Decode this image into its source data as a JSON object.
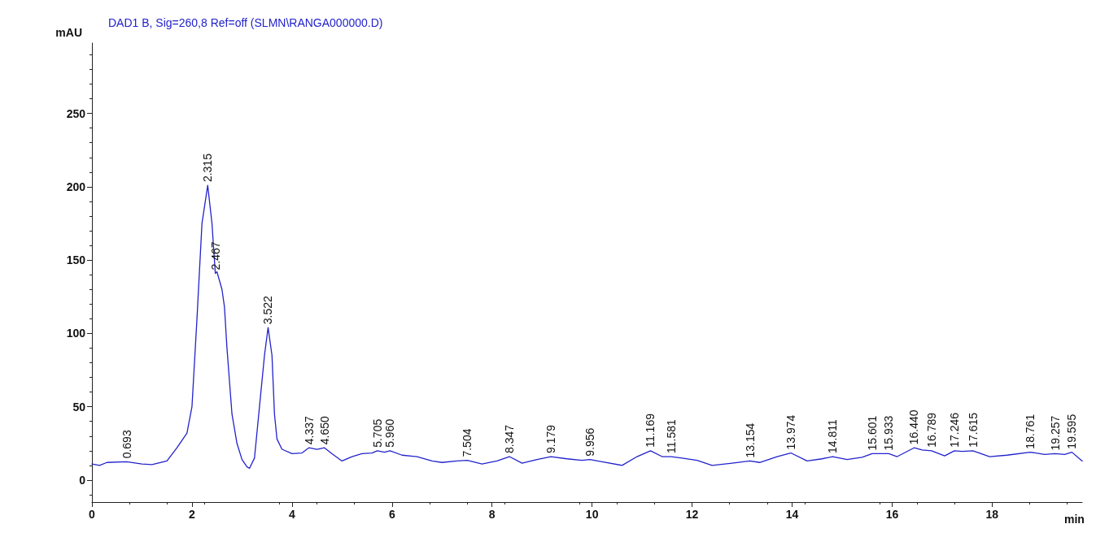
{
  "chart_data": {
    "type": "line",
    "title": "DAD1 B, Sig=260,8 Ref=off (SLMN\\RANGA000000.D)",
    "xlabel": "min",
    "ylabel": "mAU",
    "xlim": [
      0,
      19.8
    ],
    "xticks": [
      0,
      2,
      4,
      6,
      8,
      10,
      12,
      14,
      16,
      18
    ],
    "ylim": [
      -15,
      298
    ],
    "yticks": [
      0,
      50,
      100,
      150,
      200,
      250
    ],
    "grid": false,
    "marker": "none",
    "line_style": "solid",
    "series": [
      {
        "color": "#2222cc",
        "x": [
          0,
          0.15,
          0.3,
          0.693,
          1.0,
          1.2,
          1.5,
          1.7,
          1.9,
          2.0,
          2.1,
          2.2,
          2.315,
          2.4,
          2.467,
          2.5,
          2.6,
          2.65,
          2.7,
          2.8,
          2.9,
          3.0,
          3.1,
          3.15,
          3.25,
          3.35,
          3.45,
          3.522,
          3.6,
          3.65,
          3.7,
          3.8,
          4.0,
          4.2,
          4.337,
          4.5,
          4.65,
          4.8,
          5.0,
          5.2,
          5.4,
          5.6,
          5.705,
          5.85,
          5.96,
          6.2,
          6.5,
          6.8,
          7.0,
          7.3,
          7.504,
          7.8,
          8.1,
          8.347,
          8.6,
          8.9,
          9.179,
          9.5,
          9.8,
          9.956,
          10.2,
          10.6,
          10.9,
          11.169,
          11.4,
          11.581,
          11.8,
          12.1,
          12.4,
          12.8,
          13.154,
          13.35,
          13.7,
          13.974,
          14.3,
          14.6,
          14.811,
          15.1,
          15.4,
          15.601,
          15.933,
          16.1,
          16.44,
          16.6,
          16.789,
          17.05,
          17.246,
          17.4,
          17.615,
          17.95,
          18.3,
          18.761,
          19.05,
          19.257,
          19.45,
          19.595,
          19.8
        ],
        "values": [
          11,
          10,
          12,
          12.5,
          11,
          10.5,
          13,
          22,
          32,
          50,
          110,
          175,
          201,
          175,
          141,
          142,
          130,
          118,
          90,
          45,
          25,
          14,
          9,
          8,
          15,
          50,
          85,
          104,
          85,
          45,
          28,
          21,
          18,
          18.5,
          22,
          21,
          22,
          18,
          13,
          16,
          18,
          18.5,
          20,
          19,
          20,
          17,
          16,
          13,
          12,
          13,
          13.5,
          11,
          13,
          16,
          11.5,
          14,
          16,
          14.5,
          13.5,
          14,
          12.5,
          10,
          16,
          20,
          16,
          16,
          15,
          13.5,
          10,
          11.5,
          13,
          12,
          16,
          18.5,
          13,
          14.5,
          16,
          14,
          15.5,
          18,
          18,
          16,
          22,
          20.5,
          20,
          16.5,
          20,
          19.5,
          20,
          16,
          17,
          19,
          17.5,
          18,
          17.5,
          19,
          13
        ]
      }
    ],
    "annotations": [
      {
        "text": "0.693",
        "x": 0.693,
        "y": 12.5
      },
      {
        "text": "2.315",
        "x": 2.315,
        "y": 201
      },
      {
        "text": "2.467",
        "x": 2.467,
        "y": 141
      },
      {
        "text": "3.522",
        "x": 3.522,
        "y": 104
      },
      {
        "text": "4.337",
        "x": 4.337,
        "y": 22
      },
      {
        "text": "4.650",
        "x": 4.65,
        "y": 22
      },
      {
        "text": "5.705",
        "x": 5.705,
        "y": 20
      },
      {
        "text": "5.960",
        "x": 5.96,
        "y": 20
      },
      {
        "text": "7.504",
        "x": 7.504,
        "y": 13.5
      },
      {
        "text": "8.347",
        "x": 8.347,
        "y": 16
      },
      {
        "text": "9.179",
        "x": 9.179,
        "y": 16
      },
      {
        "text": "9.956",
        "x": 9.956,
        "y": 14
      },
      {
        "text": "11.169",
        "x": 11.169,
        "y": 20
      },
      {
        "text": "11.581",
        "x": 11.581,
        "y": 16
      },
      {
        "text": "13.154",
        "x": 13.154,
        "y": 13
      },
      {
        "text": "13.974",
        "x": 13.974,
        "y": 18.5
      },
      {
        "text": "14.811",
        "x": 14.811,
        "y": 16
      },
      {
        "text": "15.601",
        "x": 15.601,
        "y": 18
      },
      {
        "text": "15.933",
        "x": 15.933,
        "y": 18
      },
      {
        "text": "16.440",
        "x": 16.44,
        "y": 22
      },
      {
        "text": "16.789",
        "x": 16.789,
        "y": 20
      },
      {
        "text": "17.246",
        "x": 17.246,
        "y": 20
      },
      {
        "text": "17.615",
        "x": 17.615,
        "y": 20
      },
      {
        "text": "18.761",
        "x": 18.761,
        "y": 19
      },
      {
        "text": "19.257",
        "x": 19.257,
        "y": 18
      },
      {
        "text": "19.595",
        "x": 19.595,
        "y": 19
      }
    ]
  }
}
